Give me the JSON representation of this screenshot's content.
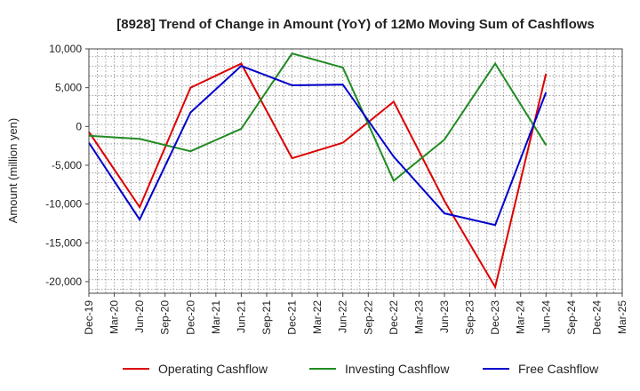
{
  "chart_data": {
    "type": "line",
    "title": "[8928]  Trend of Change in Amount (YoY) of 12Mo Moving Sum of Cashflows",
    "xlabel": "",
    "ylabel": "Amount (million yen)",
    "ylim": [
      -21500,
      10000
    ],
    "y_ticks": [
      10000,
      5000,
      0,
      -5000,
      -10000,
      -15000,
      -20000
    ],
    "y_tick_labels": [
      "10,000",
      "5,000",
      "0",
      "-5,000",
      "-10,000",
      "-15,000",
      "-20,000"
    ],
    "categories": [
      "Dec-19",
      "Mar-20",
      "Jun-20",
      "Sep-20",
      "Dec-20",
      "Mar-21",
      "Jun-21",
      "Sep-21",
      "Dec-21",
      "Mar-22",
      "Jun-22",
      "Sep-22",
      "Dec-22",
      "Mar-23",
      "Jun-23",
      "Sep-23",
      "Dec-23",
      "Mar-24",
      "Jun-24",
      "Sep-24",
      "Dec-24",
      "Mar-25"
    ],
    "grid": true,
    "legend_position": "bottom",
    "series": [
      {
        "name": "Operating Cashflow",
        "color": "#dd0000",
        "values": [
          -700,
          null,
          -10400,
          null,
          5000,
          null,
          8100,
          null,
          -4100,
          null,
          -2100,
          null,
          3200,
          null,
          -9600,
          null,
          -20700,
          null,
          6800,
          null,
          null,
          null
        ]
      },
      {
        "name": "Investing Cashflow",
        "color": "#228b22",
        "values": [
          -1200,
          null,
          -1600,
          null,
          -3200,
          null,
          -300,
          null,
          9400,
          null,
          7600,
          null,
          -7000,
          null,
          -1700,
          null,
          8100,
          null,
          -2400,
          null,
          null,
          null
        ]
      },
      {
        "name": "Free Cashflow",
        "color": "#0000cc",
        "values": [
          -2100,
          null,
          -12000,
          null,
          1800,
          null,
          7800,
          null,
          5300,
          null,
          5400,
          null,
          -3900,
          null,
          -11200,
          null,
          -12700,
          null,
          4400,
          null,
          null,
          null
        ]
      }
    ]
  }
}
